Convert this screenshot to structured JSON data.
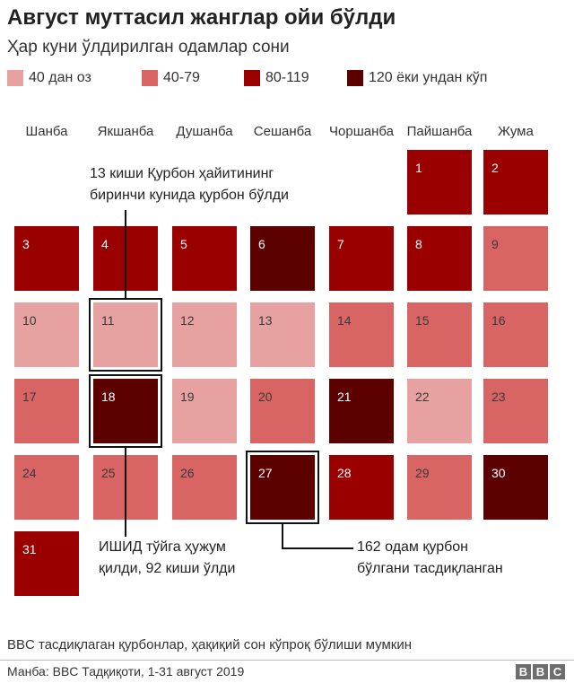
{
  "title": "Август муттасил жанглар ойи бўлди",
  "subtitle": "Ҳар куни ўлдирилган одамлар сони",
  "legend": {
    "placement": "top",
    "items": [
      {
        "label": "40 дан оз",
        "color": "#e8a1a1"
      },
      {
        "label": "40-79",
        "color": "#d86464"
      },
      {
        "label": "80-119",
        "color": "#9b0000"
      },
      {
        "label": "120 ёки ундан кўп",
        "color": "#5c0000"
      }
    ]
  },
  "chart_data": {
    "type": "heatmap",
    "layout": "calendar",
    "weekdays": [
      "Шанба",
      "Якшанба",
      "Душанба",
      "Сешанба",
      "Чоршанба",
      "Пайшанба",
      "Жума"
    ],
    "first_day_weekday_index": 5,
    "days": [
      {
        "day": "1",
        "category": 2
      },
      {
        "day": "2",
        "category": 2
      },
      {
        "day": "3",
        "category": 2
      },
      {
        "day": "4",
        "category": 2
      },
      {
        "day": "5",
        "category": 2
      },
      {
        "day": "6",
        "category": 3
      },
      {
        "day": "7",
        "category": 2
      },
      {
        "day": "8",
        "category": 2
      },
      {
        "day": "9",
        "category": 1
      },
      {
        "day": "10",
        "category": 0
      },
      {
        "day": "11",
        "category": 0
      },
      {
        "day": "12",
        "category": 0
      },
      {
        "day": "13",
        "category": 0
      },
      {
        "day": "14",
        "category": 1
      },
      {
        "day": "15",
        "category": 1
      },
      {
        "day": "16",
        "category": 1
      },
      {
        "day": "17",
        "category": 1
      },
      {
        "day": "18",
        "category": 3
      },
      {
        "day": "19",
        "category": 0
      },
      {
        "day": "20",
        "category": 1
      },
      {
        "day": "21",
        "category": 3
      },
      {
        "day": "22",
        "category": 0
      },
      {
        "day": "23",
        "category": 1
      },
      {
        "day": "24",
        "category": 1
      },
      {
        "day": "25",
        "category": 1
      },
      {
        "day": "26",
        "category": 1
      },
      {
        "day": "27",
        "category": 3
      },
      {
        "day": "28",
        "category": 2
      },
      {
        "day": "29",
        "category": 1
      },
      {
        "day": "30",
        "category": 3
      },
      {
        "day": "31",
        "category": 2
      }
    ],
    "annotations": [
      {
        "day": "11",
        "lines": [
          "13 киши Қурбон ҳайитининг",
          "биринчи кунида қурбон бўлди"
        ]
      },
      {
        "day": "18",
        "lines": [
          "ИШИД тўйга ҳужум",
          "қилди, 92 киши ўлди"
        ]
      },
      {
        "day": "27",
        "lines": [
          "162 одам қурбон",
          "бўлгани тасдиқланган"
        ]
      }
    ]
  },
  "footnote": "BBC тасдиқлаган қурбонлар, ҳақиқий сон кўпроқ бўлиши мумкин",
  "source": "Манба: BBC Тадқиқоти, 1-31 август 2019",
  "logo": {
    "letters": [
      "B",
      "B",
      "C"
    ],
    "color": "#6e6e6e"
  }
}
